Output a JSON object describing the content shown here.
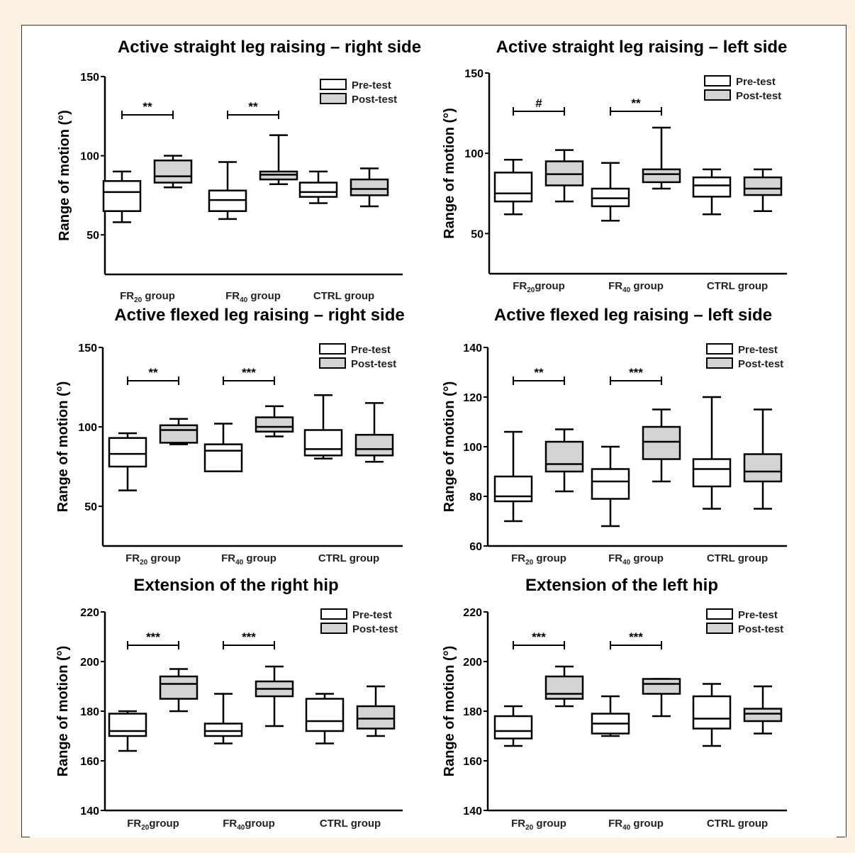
{
  "legend": {
    "pre": "Pre-test",
    "post": "Post-test"
  },
  "ylabel": "Range of motion (°)",
  "colors": {
    "pre": "#ffffff",
    "post": "#d4d4d4",
    "ink": "#000000"
  },
  "chart_data": [
    {
      "type": "box",
      "title": "Active straight leg raising – right side",
      "ylim": [
        25,
        150
      ],
      "yticks": [
        50,
        100,
        150
      ],
      "categories": [
        {
          "main": "FR",
          "sub": "20",
          "tail": " group"
        },
        {
          "main": "FR",
          "sub": "40",
          "tail": " group"
        },
        {
          "main": "CTRL group",
          "sub": "",
          "tail": ""
        }
      ],
      "series": [
        {
          "name": "Pre-test",
          "boxes": [
            [
              58,
              65,
              77,
              84,
              90
            ],
            [
              60,
              65,
              72,
              78,
              96
            ],
            [
              70,
              74,
              77,
              83,
              90
            ]
          ]
        },
        {
          "name": "Post-test",
          "boxes": [
            [
              80,
              83,
              87,
              97,
              100
            ],
            [
              82,
              85,
              88,
              90,
              113
            ],
            [
              68,
              75,
              79,
              85,
              92
            ]
          ]
        }
      ],
      "significance": [
        {
          "group": 0,
          "label": "**"
        },
        {
          "group": 1,
          "label": "**"
        }
      ]
    },
    {
      "type": "box",
      "title": "Active straight leg raising – left side",
      "ylim": [
        25,
        150
      ],
      "yticks": [
        50,
        100,
        150
      ],
      "categories": [
        {
          "main": "FR",
          "sub": "20",
          "tail": "group"
        },
        {
          "main": "FR",
          "sub": "40",
          "tail": " group"
        },
        {
          "main": "CTRL group",
          "sub": "",
          "tail": ""
        }
      ],
      "series": [
        {
          "name": "Pre-test",
          "boxes": [
            [
              62,
              70,
              75,
              88,
              96
            ],
            [
              58,
              67,
              72,
              78,
              94
            ],
            [
              62,
              73,
              80,
              85,
              90
            ]
          ]
        },
        {
          "name": "Post-test",
          "boxes": [
            [
              70,
              80,
              87,
              95,
              102
            ],
            [
              78,
              82,
              87,
              90,
              116
            ],
            [
              64,
              74,
              78,
              85,
              90
            ]
          ]
        }
      ],
      "significance": [
        {
          "group": 0,
          "label": "#"
        },
        {
          "group": 1,
          "label": "**"
        }
      ]
    },
    {
      "type": "box",
      "title": "Active flexed leg raising – right side",
      "ylim": [
        25,
        150
      ],
      "yticks": [
        50,
        100,
        150
      ],
      "categories": [
        {
          "main": "FR",
          "sub": "20",
          "tail": " group"
        },
        {
          "main": "FR",
          "sub": "40",
          "tail": " group"
        },
        {
          "main": "CTRL group",
          "sub": "",
          "tail": ""
        }
      ],
      "series": [
        {
          "name": "Pre-test",
          "boxes": [
            [
              60,
              75,
              83,
              93,
              96
            ],
            [
              72,
              72,
              85,
              89,
              102
            ],
            [
              80,
              82,
              86,
              98,
              120
            ]
          ]
        },
        {
          "name": "Post-test",
          "boxes": [
            [
              89,
              90,
              98,
              101,
              105
            ],
            [
              94,
              97,
              100,
              106,
              113
            ],
            [
              78,
              82,
              86,
              95,
              115
            ]
          ]
        }
      ],
      "significance": [
        {
          "group": 0,
          "label": "**"
        },
        {
          "group": 1,
          "label": "***"
        }
      ]
    },
    {
      "type": "box",
      "title": "Active flexed leg raising – left side",
      "ylim": [
        60,
        140
      ],
      "yticks": [
        60,
        80,
        100,
        120,
        140
      ],
      "categories": [
        {
          "main": "FR",
          "sub": "20",
          "tail": " group"
        },
        {
          "main": "FR",
          "sub": "40",
          "tail": " group"
        },
        {
          "main": "CTRL group",
          "sub": "",
          "tail": ""
        }
      ],
      "series": [
        {
          "name": "Pre-test",
          "boxes": [
            [
              70,
              78,
              80,
              88,
              106
            ],
            [
              68,
              79,
              86,
              91,
              100
            ],
            [
              75,
              84,
              91,
              95,
              120
            ]
          ]
        },
        {
          "name": "Post-test",
          "boxes": [
            [
              82,
              90,
              93,
              102,
              107
            ],
            [
              86,
              95,
              102,
              108,
              115
            ],
            [
              75,
              86,
              90,
              97,
              115
            ]
          ]
        }
      ],
      "significance": [
        {
          "group": 0,
          "label": "**"
        },
        {
          "group": 1,
          "label": "***"
        }
      ]
    },
    {
      "type": "box",
      "title": "Extension of the right hip",
      "ylim": [
        140,
        220
      ],
      "yticks": [
        140,
        160,
        180,
        200,
        220
      ],
      "categories": [
        {
          "main": "FR",
          "sub": "20",
          "tail": "group"
        },
        {
          "main": "FR",
          "sub": "40",
          "tail": "group"
        },
        {
          "main": "CTRL group",
          "sub": "",
          "tail": ""
        }
      ],
      "series": [
        {
          "name": "Pre-test",
          "boxes": [
            [
              164,
              170,
              172,
              179,
              180
            ],
            [
              167,
              170,
              172,
              175,
              187
            ],
            [
              167,
              172,
              176,
              185,
              187
            ]
          ]
        },
        {
          "name": "Post-test",
          "boxes": [
            [
              180,
              185,
              191,
              194,
              197
            ],
            [
              174,
              186,
              189,
              192,
              198
            ],
            [
              170,
              173,
              177,
              182,
              190
            ]
          ]
        }
      ],
      "significance": [
        {
          "group": 0,
          "label": "***"
        },
        {
          "group": 1,
          "label": "***"
        }
      ]
    },
    {
      "type": "box",
      "title": "Extension of the left hip",
      "ylim": [
        140,
        220
      ],
      "yticks": [
        140,
        160,
        180,
        200,
        220
      ],
      "categories": [
        {
          "main": "FR",
          "sub": "20",
          "tail": " group"
        },
        {
          "main": "FR",
          "sub": "40",
          "tail": " group"
        },
        {
          "main": "CTRL group",
          "sub": "",
          "tail": ""
        }
      ],
      "series": [
        {
          "name": "Pre-test",
          "boxes": [
            [
              166,
              169,
              172,
              178,
              182
            ],
            [
              170,
              171,
              175,
              179,
              186
            ],
            [
              166,
              173,
              177,
              186,
              191
            ]
          ]
        },
        {
          "name": "Post-test",
          "boxes": [
            [
              182,
              185,
              187,
              194,
              198
            ],
            [
              178,
              187,
              191,
              193,
              193
            ],
            [
              171,
              176,
              179,
              181,
              190
            ]
          ]
        }
      ],
      "significance": [
        {
          "group": 0,
          "label": "***"
        },
        {
          "group": 1,
          "label": "***"
        }
      ]
    }
  ]
}
